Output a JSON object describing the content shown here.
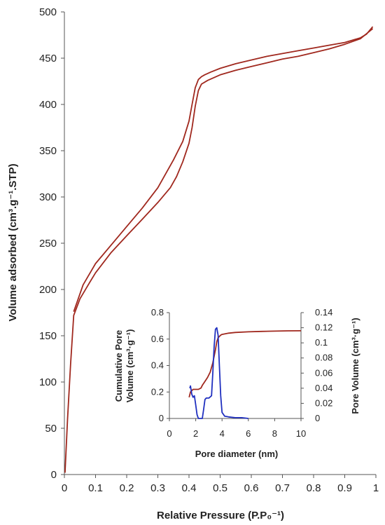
{
  "chart_data": [
    {
      "type": "line",
      "xlabel": "Relative Pressure (P.P₀⁻¹)",
      "ylabel": "Volume adsorbed (cm³.g⁻¹.STP)",
      "xlim": [
        0,
        1
      ],
      "ylim": [
        0,
        500
      ],
      "xticks": [
        "0",
        "0.1",
        "0.2",
        "0.3",
        "0.4",
        "0.5",
        "0.6",
        "0.7",
        "0.8",
        "0.9",
        "1"
      ],
      "yticks": [
        "0",
        "50",
        "100",
        "150",
        "200",
        "250",
        "300",
        "350",
        "400",
        "450",
        "500"
      ],
      "grid": false,
      "colors": {
        "series": "#a0281e"
      },
      "series": [
        {
          "x": [
            0.002,
            0.01,
            0.02,
            0.03,
            0.05,
            0.08,
            0.1,
            0.15,
            0.2,
            0.25,
            0.3,
            0.34,
            0.36,
            0.38,
            0.4,
            0.41,
            0.42,
            0.43,
            0.44,
            0.46,
            0.5,
            0.55,
            0.6,
            0.65,
            0.7,
            0.75,
            0.8,
            0.85,
            0.9,
            0.95,
            0.99
          ],
          "y": [
            2,
            60,
            120,
            172,
            190,
            207,
            218,
            240,
            258,
            276,
            294,
            310,
            322,
            338,
            358,
            375,
            398,
            415,
            422,
            426,
            432,
            437,
            441,
            445,
            449,
            452,
            456,
            460,
            465,
            471,
            482
          ]
        },
        {
          "x": [
            0.99,
            0.97,
            0.95,
            0.9,
            0.85,
            0.8,
            0.75,
            0.7,
            0.65,
            0.6,
            0.55,
            0.5,
            0.47,
            0.45,
            0.44,
            0.43,
            0.42,
            0.41,
            0.4,
            0.38,
            0.35,
            0.3,
            0.25,
            0.2,
            0.15,
            0.1,
            0.06,
            0.03
          ],
          "y": [
            484,
            476,
            472,
            467,
            464,
            461,
            458,
            455,
            452,
            448,
            444,
            439,
            435,
            432,
            430,
            427,
            418,
            400,
            382,
            360,
            340,
            310,
            288,
            268,
            248,
            228,
            205,
            176
          ]
        }
      ]
    },
    {
      "type": "line",
      "xlabel": "Pore diameter (nm)",
      "ylabel": "Cumulative Pore Volume (cm³·g⁻¹)",
      "ylabel_lines": [
        "Cumulative Pore",
        "Volume (cm³·g⁻¹)"
      ],
      "y2label": "Pore Volume (cm³·g⁻¹)",
      "xlim": [
        0,
        10
      ],
      "ylim": [
        0,
        0.8
      ],
      "y2lim": [
        0,
        0.14
      ],
      "xticks": [
        "0",
        "2",
        "4",
        "6",
        "8",
        "10"
      ],
      "yticks": [
        "0",
        "0.2",
        "0.4",
        "0.6",
        "0.8"
      ],
      "y2ticks": [
        "0",
        "0.02",
        "0.04",
        "0.06",
        "0.08",
        "0.1",
        "0.12",
        "0.14"
      ],
      "grid": false,
      "colors": {
        "cumulative": "#a0281e",
        "pore": "#1f2fbf"
      },
      "series": [
        {
          "axis": "left",
          "x": [
            1.5,
            1.6,
            1.8,
            2.0,
            2.2,
            2.4,
            2.5,
            2.7,
            2.9,
            3.1,
            3.3,
            3.5,
            3.6,
            3.7,
            3.8,
            3.9,
            4.0,
            4.5,
            5,
            6,
            7,
            8,
            9,
            10
          ],
          "y": [
            0.16,
            0.2,
            0.22,
            0.22,
            0.22,
            0.23,
            0.25,
            0.28,
            0.31,
            0.35,
            0.42,
            0.52,
            0.58,
            0.61,
            0.62,
            0.63,
            0.635,
            0.645,
            0.65,
            0.655,
            0.658,
            0.66,
            0.662,
            0.663
          ]
        },
        {
          "axis": "right",
          "x": [
            1.55,
            1.6,
            1.7,
            1.8,
            1.9,
            2.0,
            2.1,
            2.2,
            2.3,
            2.4,
            2.5,
            2.6,
            2.7,
            2.8,
            3.0,
            3.2,
            3.3,
            3.4,
            3.5,
            3.6,
            3.7,
            3.8,
            3.9,
            4.0,
            4.2,
            4.5,
            5,
            5.5,
            6
          ],
          "y": [
            0.04,
            0.043,
            0.032,
            0.028,
            0.03,
            0.018,
            0.005,
            0.0,
            0.0,
            0.0,
            0.0,
            0.012,
            0.025,
            0.027,
            0.027,
            0.03,
            0.06,
            0.095,
            0.118,
            0.12,
            0.11,
            0.07,
            0.03,
            0.008,
            0.003,
            0.002,
            0.001,
            0.001,
            0.0
          ]
        }
      ]
    }
  ]
}
